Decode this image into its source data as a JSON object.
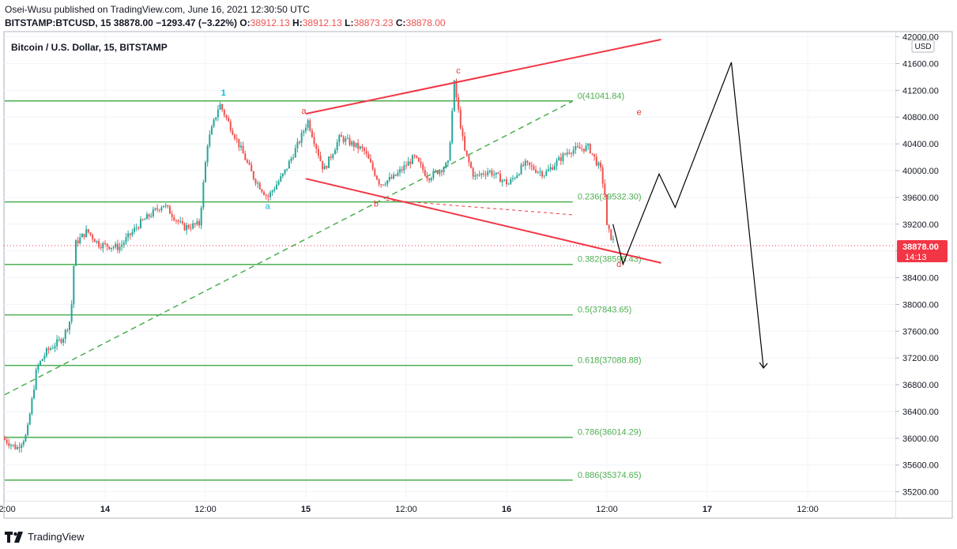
{
  "header": {
    "published": "Osei-Wusu published on TradingView.com, June 16, 2021 12:30:50 UTC",
    "symbol": "BITSTAMP:BTCUSD, 15",
    "last": "38878.00",
    "change": "−1293.47 (−3.22%)",
    "o_label": "O:",
    "o_value": "38912.13",
    "h_label": "H:",
    "h_value": "38912.13",
    "l_label": "L:",
    "l_value": "38873.23",
    "c_label": "C:",
    "c_value": "38878.00"
  },
  "footer": {
    "brand": "TradingView"
  },
  "colors": {
    "up": "#26a69a",
    "down": "#ef5350",
    "fib": "#4caf50",
    "trend": "#f23645",
    "wave_impulse": "#00bcd4",
    "wave_corrective": "#e53935",
    "projection": "#000000",
    "price_badge": "#f23645",
    "grid": "#f0f3fa"
  },
  "chart_data": {
    "type": "candlestick",
    "title": "Bitcoin / U.S. Dollar, 15, BITSTAMP",
    "currency": "USD",
    "ylim": [
      35000,
      42000
    ],
    "y_ticks": [
      "35200.00",
      "35600.00",
      "36000.00",
      "36400.00",
      "36800.00",
      "37200.00",
      "37600.00",
      "38000.00",
      "38400.00",
      "38800.00",
      "39200.00",
      "39600.00",
      "40000.00",
      "40400.00",
      "40800.00",
      "41200.00",
      "41600.00",
      "42000.00"
    ],
    "y_tick_values": [
      35200,
      35600,
      36000,
      36400,
      36800,
      37200,
      37600,
      38000,
      38400,
      38800,
      39200,
      39600,
      40000,
      40400,
      40800,
      41200,
      41600,
      42000
    ],
    "x_ticks": [
      {
        "label": "12:00",
        "t": -0.5
      },
      {
        "label": "14",
        "t": 0
      },
      {
        "label": "12:00",
        "t": 0.5
      },
      {
        "label": "15",
        "t": 1
      },
      {
        "label": "12:00",
        "t": 1.5
      },
      {
        "label": "16",
        "t": 2
      },
      {
        "label": "12:00",
        "t": 2.5
      },
      {
        "label": "17",
        "t": 3
      },
      {
        "label": "12:00",
        "t": 3.5
      }
    ],
    "x_unit": "days since June 14, 2021 00:00 UTC",
    "current_price": {
      "value": "38878.00",
      "countdown": "14:13"
    },
    "price_path": [
      {
        "t": -0.5,
        "p": 36000
      },
      {
        "t": -0.43,
        "p": 35850
      },
      {
        "t": -0.38,
        "p": 36050
      },
      {
        "t": -0.33,
        "p": 37050
      },
      {
        "t": -0.28,
        "p": 37300
      },
      {
        "t": -0.2,
        "p": 37500
      },
      {
        "t": -0.16,
        "p": 37800
      },
      {
        "t": -0.14,
        "p": 38900
      },
      {
        "t": -0.08,
        "p": 39100
      },
      {
        "t": -0.02,
        "p": 38900
      },
      {
        "t": 0.08,
        "p": 38850
      },
      {
        "t": 0.18,
        "p": 39200
      },
      {
        "t": 0.3,
        "p": 39500
      },
      {
        "t": 0.4,
        "p": 39150
      },
      {
        "t": 0.48,
        "p": 39200
      },
      {
        "t": 0.52,
        "p": 40400
      },
      {
        "t": 0.58,
        "p": 41000
      },
      {
        "t": 0.66,
        "p": 40500
      },
      {
        "t": 0.75,
        "p": 39900
      },
      {
        "t": 0.82,
        "p": 39600
      },
      {
        "t": 0.9,
        "p": 39950
      },
      {
        "t": 0.98,
        "p": 40450
      },
      {
        "t": 1.02,
        "p": 40750
      },
      {
        "t": 1.1,
        "p": 40000
      },
      {
        "t": 1.18,
        "p": 40500
      },
      {
        "t": 1.3,
        "p": 40300
      },
      {
        "t": 1.38,
        "p": 39800
      },
      {
        "t": 1.45,
        "p": 39900
      },
      {
        "t": 1.55,
        "p": 40200
      },
      {
        "t": 1.62,
        "p": 39900
      },
      {
        "t": 1.72,
        "p": 40100
      },
      {
        "t": 1.75,
        "p": 41300
      },
      {
        "t": 1.8,
        "p": 40300
      },
      {
        "t": 1.85,
        "p": 39900
      },
      {
        "t": 1.92,
        "p": 40000
      },
      {
        "t": 2.02,
        "p": 39800
      },
      {
        "t": 2.1,
        "p": 40100
      },
      {
        "t": 2.2,
        "p": 39950
      },
      {
        "t": 2.32,
        "p": 40300
      },
      {
        "t": 2.42,
        "p": 40350
      },
      {
        "t": 2.48,
        "p": 40000
      },
      {
        "t": 2.5,
        "p": 39650
      },
      {
        "t": 2.51,
        "p": 39150
      },
      {
        "t": 2.54,
        "p": 38950
      }
    ],
    "fib_levels": [
      {
        "label": "0(41041.84)",
        "value": 41041.84
      },
      {
        "label": "0.236(39532.30)",
        "value": 39532.3
      },
      {
        "label": "0.382(38598.43)",
        "value": 38598.43
      },
      {
        "label": "0.5(37843.65)",
        "value": 37843.65
      },
      {
        "label": "0.618(37088.88)",
        "value": 37088.88
      },
      {
        "label": "0.786(36014.29)",
        "value": 36014.29
      },
      {
        "label": "0.886(35374.65)",
        "value": 35374.65
      }
    ],
    "fib_start_t": -0.5,
    "fib_end_t": 2.33,
    "trend_lines": [
      {
        "name": "upper-channel",
        "from": {
          "t": 1.0,
          "p": 40850
        },
        "to": {
          "t": 2.77,
          "p": 41960
        }
      },
      {
        "name": "lower-channel",
        "from": {
          "t": 1.0,
          "p": 39880
        },
        "to": {
          "t": 2.77,
          "p": 38620
        }
      },
      {
        "name": "dashed-midline",
        "from": {
          "t": 1.4,
          "p": 39560
        },
        "to": {
          "t": 2.33,
          "p": 39340
        }
      }
    ],
    "support_line": {
      "from": {
        "t": -0.5,
        "p": 36650
      },
      "to": {
        "t": 2.33,
        "p": 41040
      }
    },
    "wave_labels": [
      {
        "text": "1",
        "t": 0.59,
        "p": 41120,
        "group": "impulse"
      },
      {
        "text": "a",
        "t": 0.81,
        "p": 39430,
        "group": "impulse"
      },
      {
        "text": "a",
        "t": 0.99,
        "p": 40850,
        "group": "corrective"
      },
      {
        "text": "b",
        "t": 1.35,
        "p": 39460,
        "group": "corrective"
      },
      {
        "text": "c",
        "t": 1.76,
        "p": 41450,
        "group": "corrective"
      },
      {
        "text": "d",
        "t": 2.56,
        "p": 38560,
        "group": "corrective"
      },
      {
        "text": "e",
        "t": 2.66,
        "p": 40830,
        "group": "corrective"
      }
    ],
    "projection": [
      {
        "t": 2.53,
        "p": 39200
      },
      {
        "t": 2.58,
        "p": 38600
      },
      {
        "t": 2.76,
        "p": 39950
      },
      {
        "t": 2.84,
        "p": 39450
      },
      {
        "t": 3.12,
        "p": 41620
      },
      {
        "t": 3.28,
        "p": 37050
      }
    ]
  }
}
